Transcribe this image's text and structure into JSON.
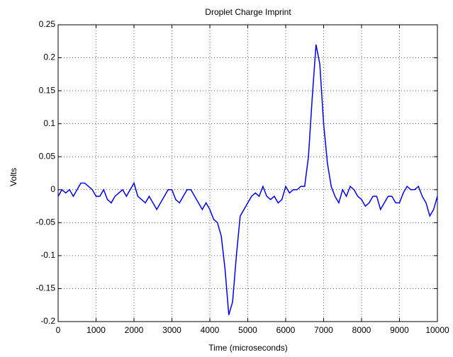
{
  "chart_data": {
    "type": "line",
    "title": "Droplet Charge Imprint",
    "x_label": "Time (microseconds)",
    "y_label": "Volts",
    "x": [
      0,
      100,
      200,
      300,
      400,
      500,
      600,
      700,
      800,
      900,
      1000,
      1100,
      1200,
      1300,
      1400,
      1500,
      1600,
      1700,
      1800,
      1900,
      2000,
      2100,
      2200,
      2300,
      2400,
      2500,
      2600,
      2700,
      2800,
      2900,
      3000,
      3100,
      3200,
      3300,
      3400,
      3500,
      3600,
      3700,
      3800,
      3900,
      4000,
      4100,
      4200,
      4300,
      4400,
      4500,
      4600,
      4700,
      4800,
      4900,
      5000,
      5100,
      5200,
      5300,
      5400,
      5500,
      5600,
      5700,
      5800,
      5900,
      6000,
      6100,
      6200,
      6300,
      6400,
      6500,
      6600,
      6700,
      6800,
      6900,
      7000,
      7100,
      7200,
      7300,
      7400,
      7500,
      7600,
      7700,
      7800,
      7900,
      8000,
      8100,
      8200,
      8300,
      8400,
      8500,
      8600,
      8700,
      8800,
      8900,
      9000,
      9100,
      9200,
      9300,
      9400,
      9500,
      9600,
      9700,
      9800,
      9900,
      10000
    ],
    "values": [
      -0.01,
      0,
      -0.005,
      0,
      -0.01,
      0,
      0.01,
      0.01,
      0.005,
      0,
      -0.01,
      -0.01,
      0,
      -0.015,
      -0.02,
      -0.01,
      -0.005,
      0,
      -0.01,
      0,
      0.01,
      -0.01,
      -0.015,
      -0.02,
      -0.01,
      -0.02,
      -0.03,
      -0.02,
      -0.01,
      0,
      0,
      -0.015,
      -0.02,
      -0.01,
      0,
      0,
      -0.01,
      -0.02,
      -0.03,
      -0.02,
      -0.03,
      -0.045,
      -0.05,
      -0.07,
      -0.12,
      -0.19,
      -0.17,
      -0.1,
      -0.04,
      -0.03,
      -0.02,
      -0.01,
      -0.005,
      -0.01,
      0.005,
      -0.01,
      -0.015,
      -0.01,
      -0.02,
      -0.015,
      0.005,
      -0.005,
      0,
      0,
      0.005,
      0.005,
      0.05,
      0.14,
      0.22,
      0.19,
      0.1,
      0.04,
      0.005,
      -0.01,
      -0.02,
      0,
      -0.01,
      0.005,
      0,
      -0.01,
      -0.015,
      -0.025,
      -0.02,
      -0.01,
      -0.01,
      -0.03,
      -0.02,
      -0.01,
      -0.01,
      -0.02,
      -0.02,
      -0.005,
      0.005,
      0,
      0,
      0.005,
      -0.01,
      -0.02,
      -0.04,
      -0.03,
      -0.01
    ],
    "color": "#0000ff",
    "xlim": [
      0,
      10000
    ],
    "xticks": [
      0,
      1000,
      2000,
      3000,
      4000,
      5000,
      6000,
      7000,
      8000,
      9000,
      10000
    ],
    "ylim": [
      -0.2,
      0.25
    ],
    "yticks": [
      -0.2,
      -0.15,
      -0.1,
      -0.05,
      0,
      0.05,
      0.1,
      0.15,
      0.2,
      0.25
    ],
    "grid": true
  }
}
